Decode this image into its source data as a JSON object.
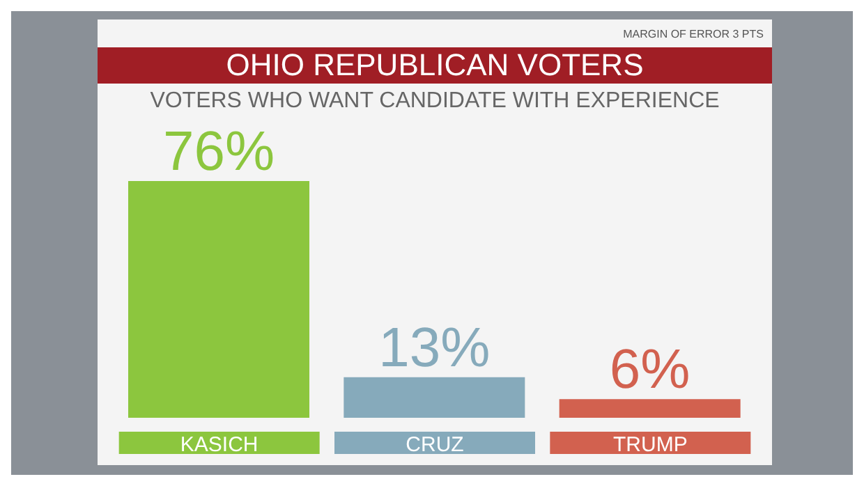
{
  "chart_data": {
    "type": "bar",
    "title": "OHIO REPUBLICAN VOTERS",
    "subtitle": "VOTERS WHO WANT CANDIDATE WITH EXPERIENCE",
    "annotations": [
      "MARGIN OF ERROR 3 PTS"
    ],
    "categories": [
      "KASICH",
      "CRUZ",
      "TRUMP"
    ],
    "values": [
      76,
      13,
      6
    ],
    "colors": [
      "#8cc63e",
      "#86aabb",
      "#d2614f"
    ],
    "value_labels": [
      "76%",
      "13%",
      "6%"
    ]
  }
}
